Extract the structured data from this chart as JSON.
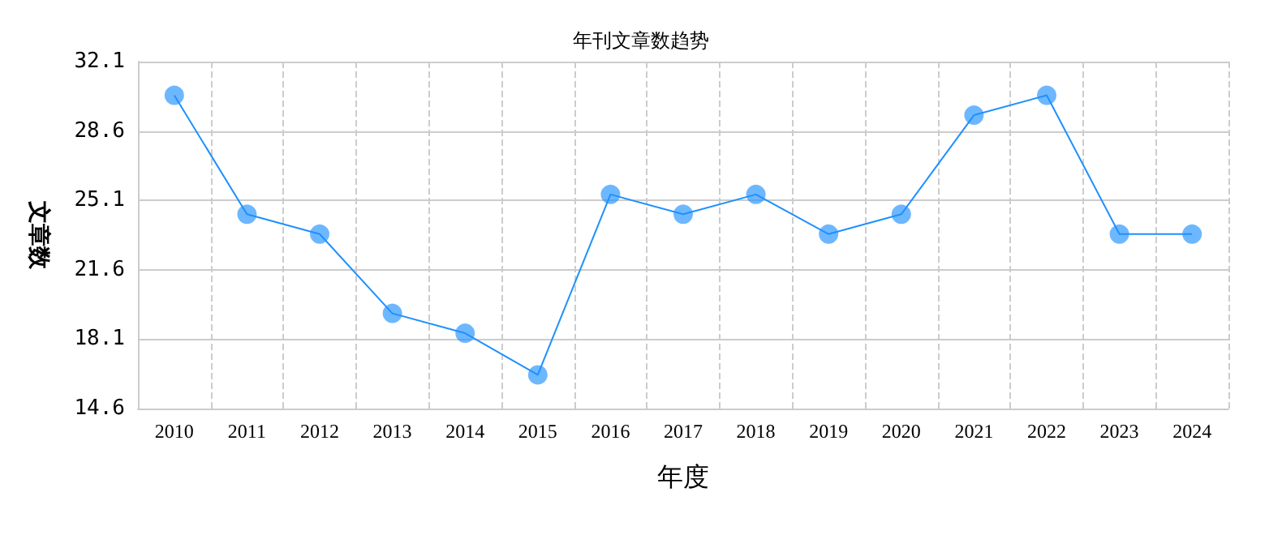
{
  "chart_data": {
    "type": "line",
    "title": "年刊文章数趋势",
    "xlabel": "年度",
    "ylabel": "文章数",
    "categories": [
      "2010",
      "2011",
      "2012",
      "2013",
      "2014",
      "2015",
      "2016",
      "2017",
      "2018",
      "2019",
      "2020",
      "2021",
      "2022",
      "2023",
      "2024"
    ],
    "series": [
      {
        "color": "#1e90ff",
        "values": [
          30.4,
          24.4,
          23.4,
          19.4,
          18.4,
          16.3,
          25.4,
          24.4,
          25.4,
          23.4,
          24.4,
          29.4,
          30.4,
          23.4,
          23.4
        ]
      }
    ],
    "ylim": [
      14.6,
      32.1
    ],
    "yticks": [
      14.6,
      18.1,
      21.6,
      25.1,
      28.6,
      32.1
    ],
    "grid": true,
    "marker": "circle",
    "line_style": "solid"
  }
}
